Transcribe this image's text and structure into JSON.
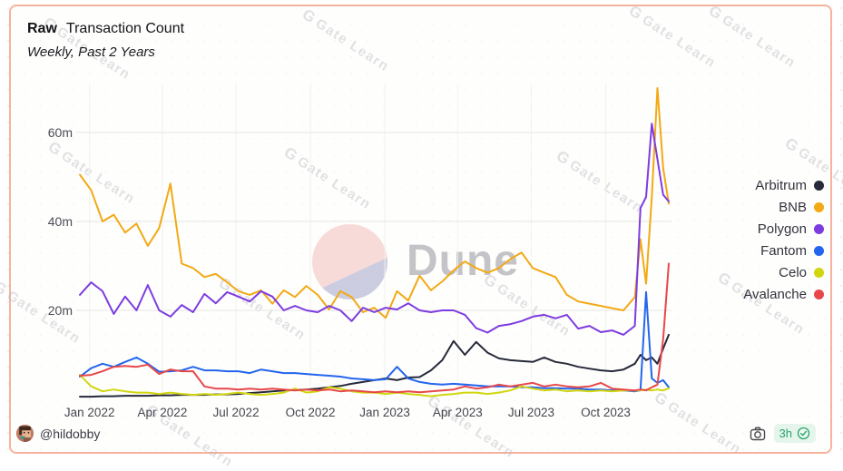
{
  "header": {
    "title_prefix": "Raw",
    "title": "Transaction Count",
    "subtitle": "Weekly, Past 2 Years"
  },
  "watermark": {
    "brand": "Dune",
    "tile_logo_glyph": "G",
    "tile_text": "Gate Learn"
  },
  "footer": {
    "author_handle": "@hildobby",
    "age_badge": "3h"
  },
  "colors": {
    "card_border": "#f5b39e",
    "card_bg": "#fdfdfb",
    "grid_line": "#e7e7e3",
    "axis_text": "#4c4c55",
    "legend_text": "#33333d",
    "badge_bg": "#e6f5ec",
    "badge_text": "#27a36a",
    "dune_pink": "#f7d9d6",
    "dune_lavender": "#c9cade"
  },
  "chart_data": {
    "type": "line",
    "title": "Raw Transaction Count",
    "subtitle": "Weekly, Past 2 Years",
    "xlabel": "",
    "ylabel": "",
    "y_unit": "millions of transactions per week",
    "ylim": [
      0,
      72
    ],
    "grid": "horizontal",
    "legend_position": "right",
    "y_ticks": [
      {
        "value": 20,
        "label": "20m"
      },
      {
        "value": 40,
        "label": "40m"
      },
      {
        "value": 60,
        "label": "60m"
      }
    ],
    "x_ticks": [
      {
        "date": "2022-01-01",
        "label": "Jan 2022"
      },
      {
        "date": "2022-04-01",
        "label": "Apr 2022"
      },
      {
        "date": "2022-07-01",
        "label": "Jul 2022"
      },
      {
        "date": "2022-10-01",
        "label": "Oct 2022"
      },
      {
        "date": "2023-01-01",
        "label": "Jan 2023"
      },
      {
        "date": "2023-04-01",
        "label": "Apr 2023"
      },
      {
        "date": "2023-07-01",
        "label": "Jul 2023"
      },
      {
        "date": "2023-10-01",
        "label": "Oct 2023"
      }
    ],
    "x": [
      "2021-12-20",
      "2022-01-03",
      "2022-01-17",
      "2022-01-31",
      "2022-02-14",
      "2022-02-28",
      "2022-03-14",
      "2022-03-28",
      "2022-04-11",
      "2022-04-25",
      "2022-05-09",
      "2022-05-23",
      "2022-06-06",
      "2022-06-20",
      "2022-07-04",
      "2022-07-18",
      "2022-08-01",
      "2022-08-15",
      "2022-08-29",
      "2022-09-12",
      "2022-09-26",
      "2022-10-10",
      "2022-10-24",
      "2022-11-07",
      "2022-11-21",
      "2022-12-05",
      "2022-12-19",
      "2023-01-02",
      "2023-01-16",
      "2023-01-30",
      "2023-02-13",
      "2023-02-27",
      "2023-03-13",
      "2023-03-27",
      "2023-04-10",
      "2023-04-24",
      "2023-05-08",
      "2023-05-22",
      "2023-06-05",
      "2023-06-19",
      "2023-07-03",
      "2023-07-17",
      "2023-07-31",
      "2023-08-14",
      "2023-08-28",
      "2023-09-11",
      "2023-09-25",
      "2023-10-09",
      "2023-10-23",
      "2023-11-06",
      "2023-11-13",
      "2023-11-20",
      "2023-11-27",
      "2023-12-04",
      "2023-12-11",
      "2023-12-18"
    ],
    "series": [
      {
        "name": "Arbitrum",
        "color": "#272a3a",
        "values": [
          0.6,
          0.6,
          0.7,
          0.7,
          0.8,
          0.8,
          0.8,
          0.9,
          0.9,
          1.0,
          1.0,
          1.0,
          1.1,
          1.1,
          1.2,
          1.4,
          1.6,
          1.8,
          2.0,
          2.1,
          2.2,
          2.4,
          2.7,
          3.0,
          3.5,
          3.9,
          4.3,
          4.7,
          4.3,
          4.9,
          5.0,
          6.5,
          8.8,
          13.1,
          10.0,
          12.9,
          10.5,
          9.2,
          8.8,
          8.6,
          8.4,
          9.4,
          8.4,
          8.0,
          7.3,
          6.9,
          6.5,
          6.3,
          6.7,
          8.0,
          10.0,
          8.8,
          9.4,
          8.0,
          11.4,
          14.5
        ]
      },
      {
        "name": "BNB",
        "color": "#f2a915",
        "values": [
          50.5,
          47.0,
          40.0,
          41.5,
          37.5,
          39.5,
          34.5,
          38.5,
          48.5,
          30.5,
          29.5,
          27.5,
          28.2,
          26.3,
          24.3,
          23.5,
          24.5,
          21.5,
          24.5,
          23.0,
          25.5,
          23.5,
          20.2,
          24.3,
          23.0,
          19.6,
          20.6,
          18.3,
          24.3,
          22.2,
          27.8,
          24.5,
          26.5,
          29.0,
          31.0,
          29.5,
          28.5,
          29.5,
          31.5,
          33.0,
          29.5,
          28.5,
          27.5,
          23.5,
          22.0,
          21.5,
          21.0,
          20.5,
          20.0,
          23.0,
          36.0,
          26.0,
          45.5,
          70.0,
          52.0,
          44.0
        ]
      },
      {
        "name": "Polygon",
        "color": "#7d3ce0",
        "values": [
          23.5,
          26.3,
          24.3,
          19.2,
          23.1,
          20.0,
          25.7,
          20.0,
          18.6,
          21.2,
          19.6,
          23.7,
          21.6,
          24.1,
          23.1,
          22.0,
          24.3,
          23.1,
          20.0,
          21.0,
          20.0,
          19.6,
          21.0,
          20.0,
          17.6,
          20.6,
          19.6,
          20.6,
          20.2,
          21.6,
          20.0,
          19.6,
          20.0,
          20.0,
          19.0,
          16.0,
          15.0,
          16.5,
          16.9,
          17.6,
          18.6,
          19.0,
          18.2,
          19.0,
          15.9,
          16.5,
          15.1,
          15.5,
          14.5,
          16.5,
          43.0,
          45.5,
          62.0,
          54.0,
          46.0,
          44.5
        ]
      },
      {
        "name": "Fantom",
        "color": "#2365ef",
        "values": [
          5.1,
          7.0,
          8.0,
          7.3,
          8.4,
          9.4,
          8.0,
          6.2,
          6.3,
          6.5,
          7.3,
          6.5,
          6.5,
          6.3,
          6.3,
          5.9,
          6.7,
          6.3,
          5.9,
          5.9,
          5.7,
          5.5,
          5.3,
          5.1,
          4.7,
          4.5,
          4.3,
          4.5,
          7.3,
          4.7,
          3.9,
          3.5,
          3.3,
          3.5,
          3.3,
          3.1,
          2.9,
          2.9,
          2.9,
          2.7,
          2.7,
          2.5,
          2.5,
          2.4,
          2.4,
          2.2,
          2.2,
          2.0,
          2.0,
          1.8,
          2.0,
          24.1,
          4.7,
          3.7,
          4.3,
          2.7
        ]
      },
      {
        "name": "Celo",
        "color": "#d2d60f",
        "values": [
          5.5,
          2.9,
          1.8,
          2.2,
          1.8,
          1.5,
          1.5,
          1.2,
          1.5,
          1.2,
          1.0,
          1.2,
          1.0,
          1.2,
          1.5,
          1.2,
          1.0,
          1.2,
          1.5,
          2.4,
          1.5,
          1.8,
          2.7,
          2.4,
          1.8,
          1.5,
          1.5,
          1.2,
          1.5,
          1.2,
          1.0,
          0.7,
          1.0,
          1.2,
          1.5,
          1.5,
          1.2,
          1.5,
          2.0,
          2.9,
          2.4,
          2.0,
          2.2,
          1.8,
          2.0,
          1.8,
          2.0,
          1.8,
          2.0,
          2.0,
          2.0,
          2.2,
          2.0,
          2.2,
          2.0,
          2.5
        ]
      },
      {
        "name": "Avalanche",
        "color": "#e84749",
        "values": [
          5.3,
          5.5,
          6.3,
          7.3,
          7.5,
          7.3,
          7.8,
          5.7,
          6.7,
          6.3,
          6.3,
          2.9,
          2.4,
          2.4,
          2.2,
          2.4,
          2.2,
          2.4,
          2.2,
          2.0,
          2.2,
          2.0,
          2.2,
          1.8,
          2.0,
          1.8,
          1.6,
          1.8,
          1.6,
          1.8,
          1.6,
          1.8,
          2.0,
          2.2,
          2.9,
          2.4,
          2.7,
          3.3,
          2.9,
          3.3,
          3.7,
          2.9,
          3.3,
          2.9,
          2.7,
          2.9,
          3.7,
          2.4,
          2.2,
          2.0,
          2.2,
          2.0,
          2.7,
          3.3,
          13.5,
          30.5
        ]
      }
    ]
  }
}
